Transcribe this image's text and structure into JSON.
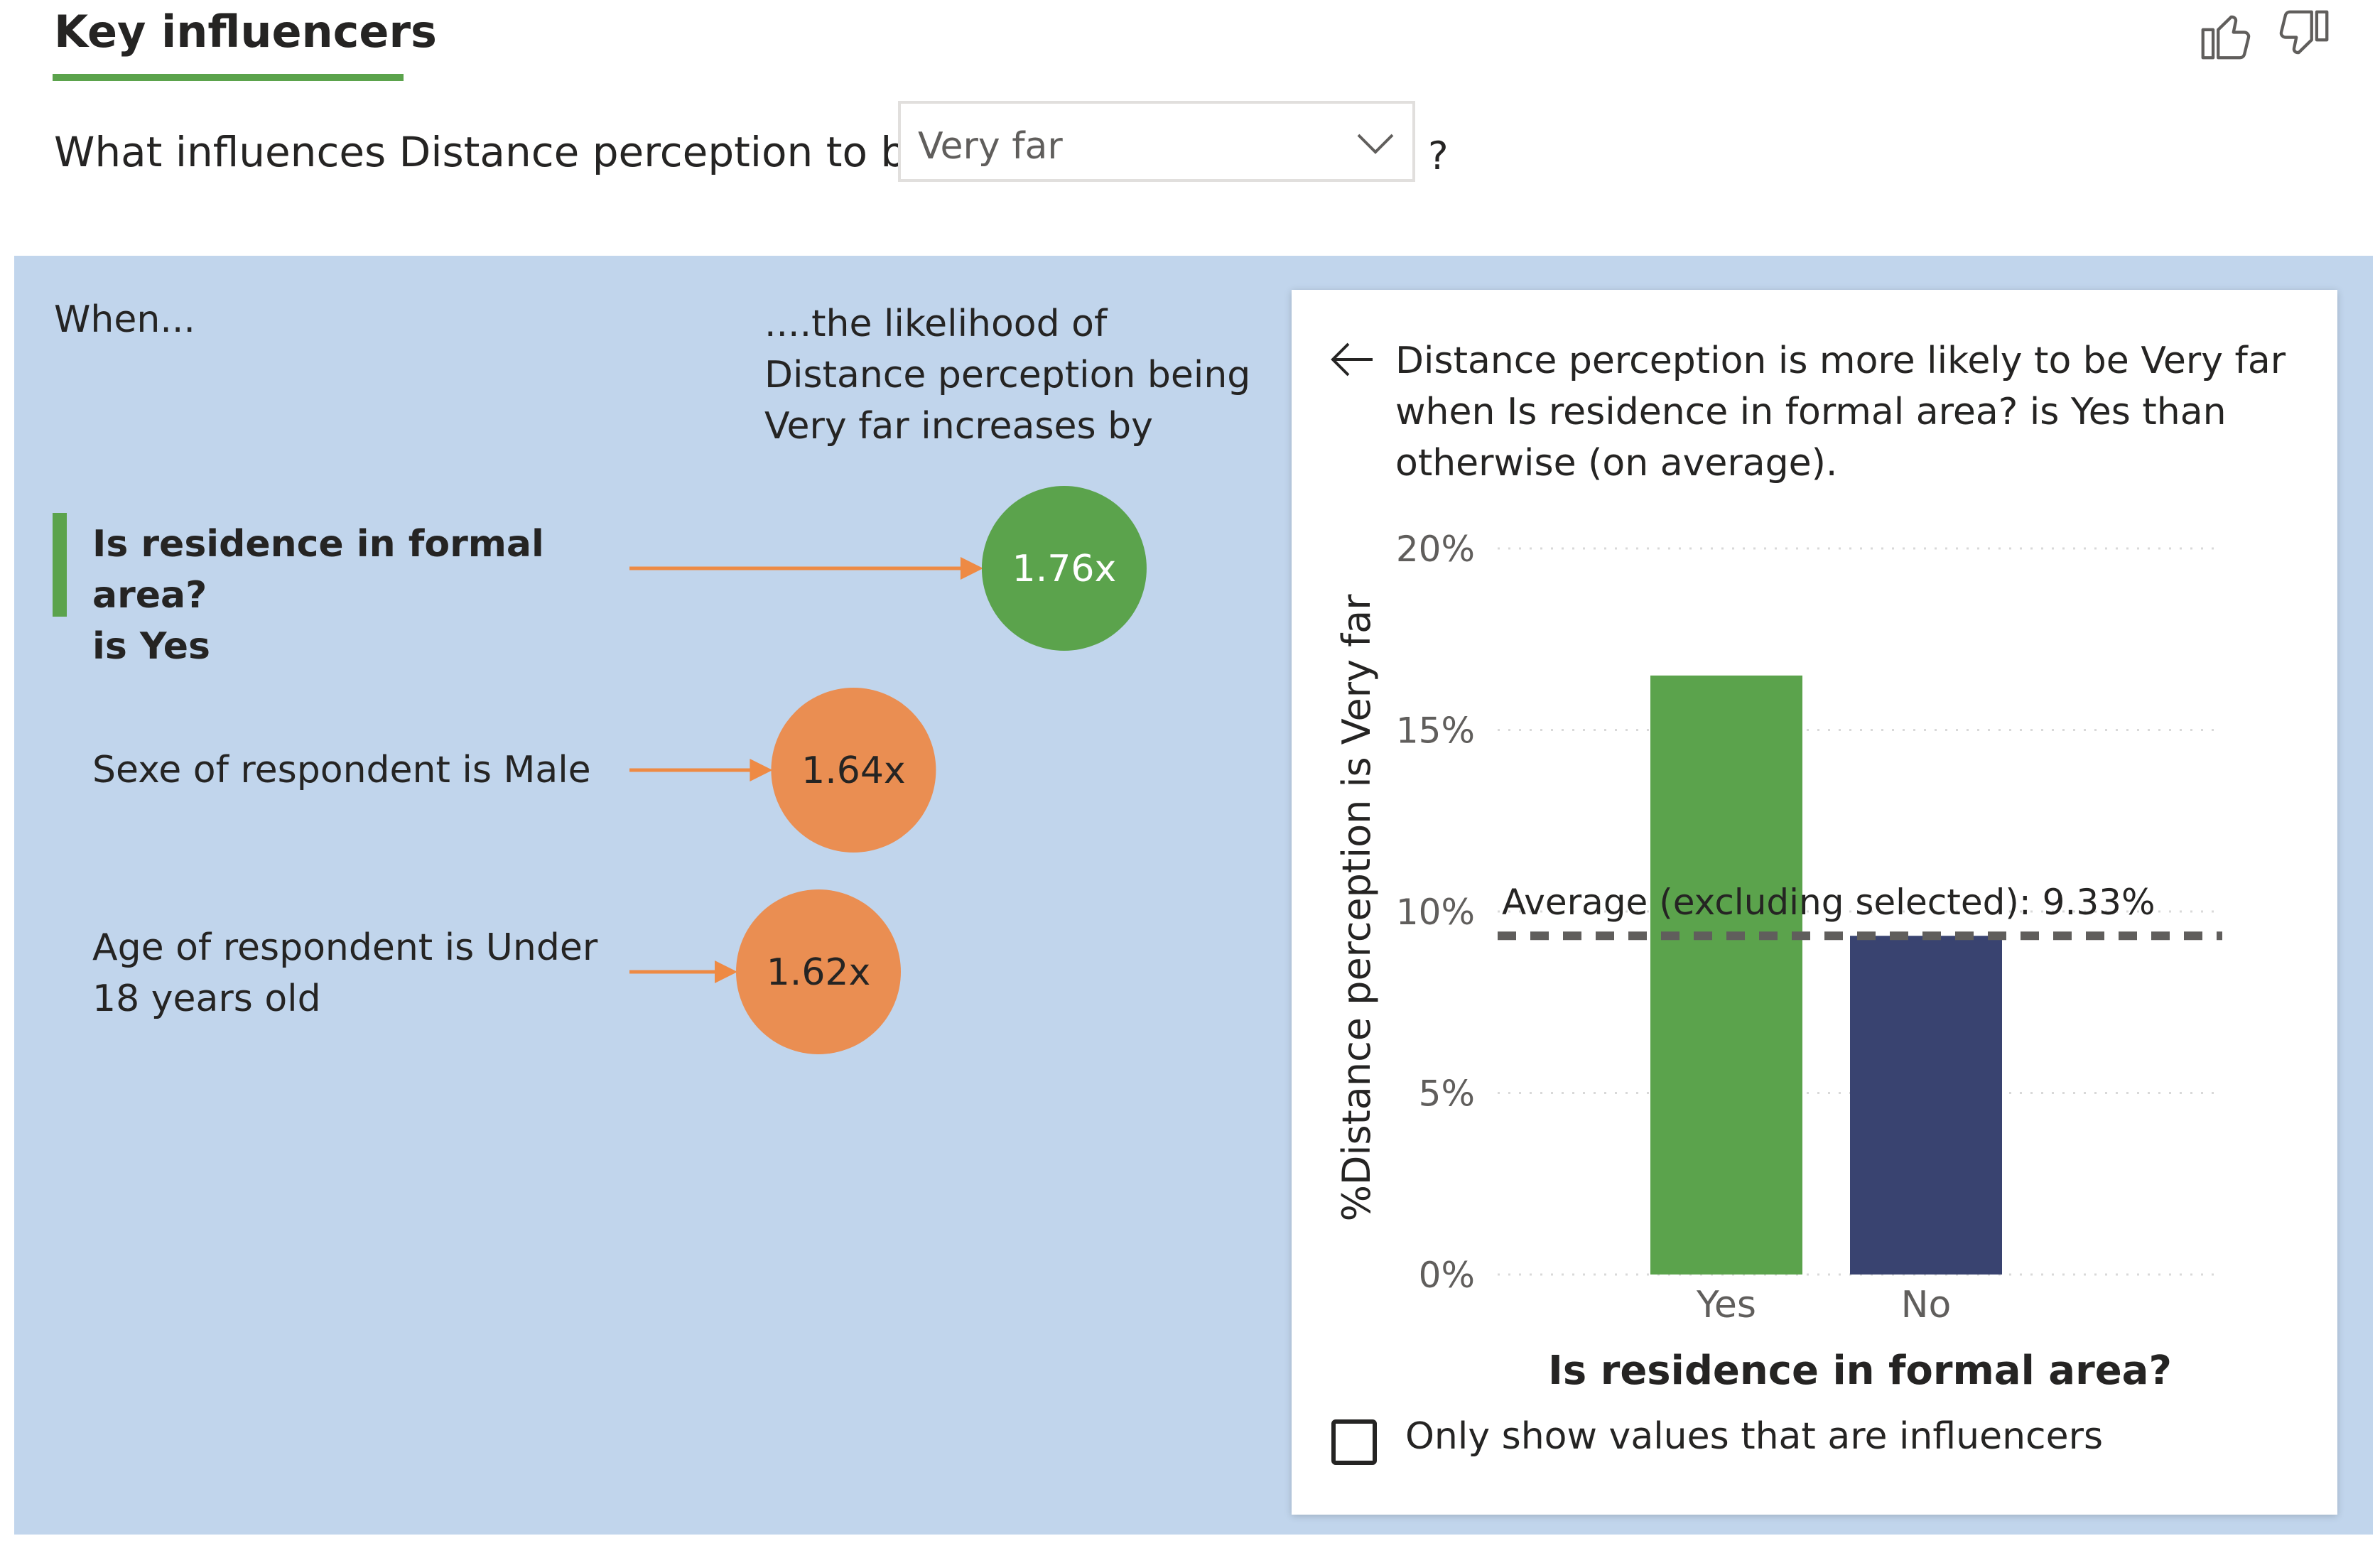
{
  "header": {
    "title": "Key influencers",
    "question_prefix": "What influences Distance perception to be",
    "selected_value": "Very far",
    "question_suffix": "?"
  },
  "panel": {
    "when_label": "When...",
    "likelihood_label": "....the likelihood of Distance perception being Very far increases by"
  },
  "influencers": [
    {
      "line1": "Is residence in formal area?",
      "line2": "is Yes",
      "value": 1.76,
      "value_label": "1.76x",
      "color": "#5ba34c",
      "selected": true
    },
    {
      "line1": "Sexe of respondent is Male",
      "line2": "",
      "value": 1.64,
      "value_label": "1.64x",
      "color": "#ea8e52",
      "selected": false
    },
    {
      "line1": "Age of respondent is Under",
      "line2": "18 years old",
      "value": 1.62,
      "value_label": "1.62x",
      "color": "#ea8e52",
      "selected": false
    }
  ],
  "detail": {
    "description": "Distance perception is more likely to be Very far when Is residence in formal area? is Yes than otherwise (on average).",
    "checkbox_label": "Only show values that are influencers",
    "checkbox_checked": false
  },
  "chart_data": {
    "type": "bar",
    "title": "",
    "xlabel": "Is residence in formal area?",
    "ylabel": "%Distance perception is Very far",
    "categories": [
      "Yes",
      "No"
    ],
    "values": [
      16.5,
      9.33
    ],
    "bar_colors": [
      "#5ba34c",
      "#394370"
    ],
    "ylim": [
      0,
      20
    ],
    "yticks": [
      0,
      5,
      10,
      15,
      20
    ],
    "ytick_labels": [
      "0%",
      "5%",
      "10%",
      "15%",
      "20%"
    ],
    "grid": true,
    "reference_line": {
      "value": 9.33,
      "label": "Average (excluding selected): 9.33%"
    }
  },
  "colors": {
    "panel_bg": "#c1d5ec",
    "accent_green": "#5ba34c",
    "accent_orange": "#ea8e52",
    "arrow_orange": "#ee8a44",
    "navy": "#394370"
  },
  "icons": {
    "like": "thumbs-up-icon",
    "dislike": "thumbs-down-icon",
    "back": "back-arrow-icon",
    "dropdown": "chevron-down-icon"
  }
}
